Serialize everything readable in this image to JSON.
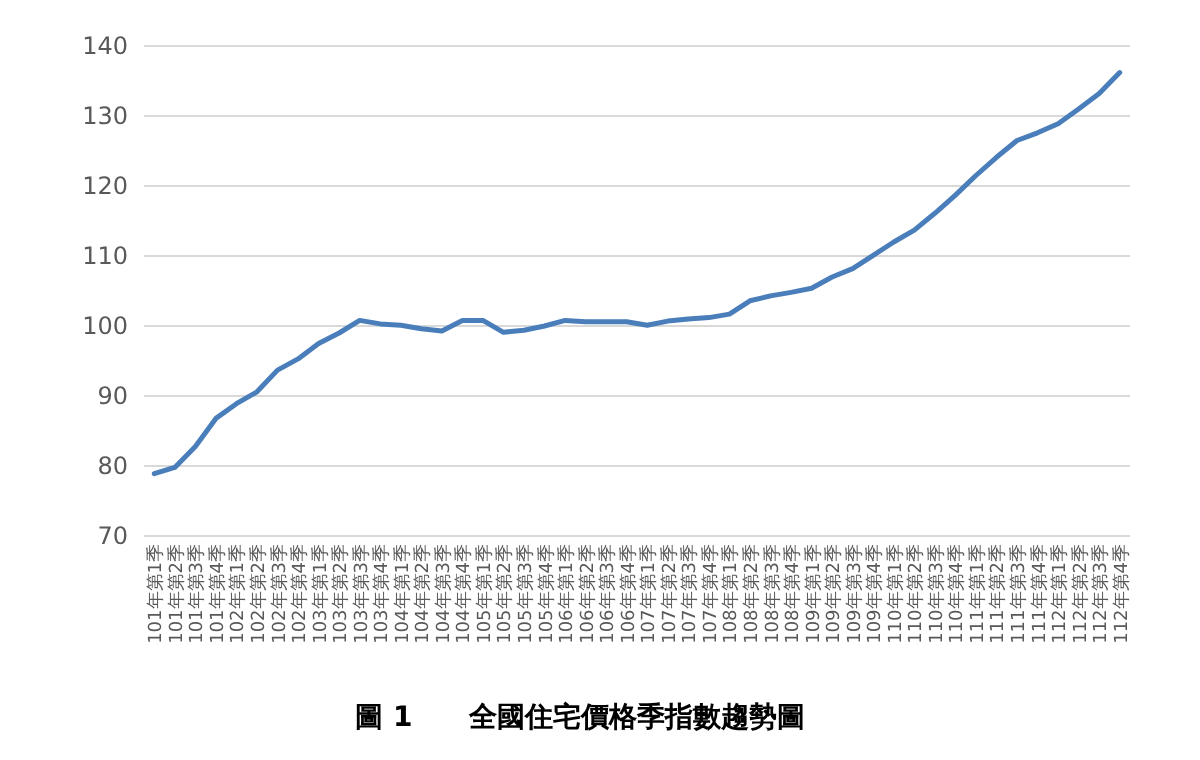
{
  "chart_data": {
    "type": "line",
    "title": "圖 1　　全國住宅價格季指數趨勢圖",
    "categories": [
      "101年第1季",
      "101年第2季",
      "101年第3季",
      "101年第4季",
      "102年第1季",
      "102年第2季",
      "102年第3季",
      "102年第4季",
      "103年第1季",
      "103年第2季",
      "103年第3季",
      "103年第4季",
      "104年第1季",
      "104年第2季",
      "104年第3季",
      "104年第4季",
      "105年第1季",
      "105年第2季",
      "105年第3季",
      "105年第4季",
      "106年第1季",
      "106年第2季",
      "106年第3季",
      "106年第4季",
      "107年第1季",
      "107年第2季",
      "107年第3季",
      "107年第4季",
      "108年第1季",
      "108年第2季",
      "108年第3季",
      "108年第4季",
      "109年第1季",
      "109年第2季",
      "109年第3季",
      "109年第4季",
      "110年第1季",
      "110年第2季",
      "110年第3季",
      "110年第4季",
      "111年第1季",
      "111年第2季",
      "111年第3季",
      "111年第4季",
      "112年第1季",
      "112年第2季",
      "112年第3季",
      "112年第4季"
    ],
    "series": [
      {
        "color": "#4a7ebb",
        "values": [
          78.9,
          79.8,
          82.8,
          86.8,
          88.9,
          90.6,
          93.7,
          95.3,
          97.5,
          99,
          100.8,
          100.3,
          100.1,
          99.6,
          99.3,
          100.8,
          100.8,
          99.1,
          99.4,
          100,
          100.8,
          100.6,
          100.6,
          100.6,
          100.1,
          100.7,
          101,
          101.2,
          101.7,
          103.6,
          104.3,
          104.8,
          105.4,
          107,
          108.2,
          110.1,
          112,
          113.7,
          116.1,
          118.7,
          121.5,
          124.1,
          126.5,
          127.6,
          128.9,
          131,
          133.2,
          136.2
        ]
      }
    ],
    "ylim": [
      70,
      140
    ],
    "yticks": [
      70,
      80,
      90,
      100,
      110,
      120,
      130,
      140
    ],
    "grid": "y",
    "marker": "none",
    "line_style": "solid"
  }
}
